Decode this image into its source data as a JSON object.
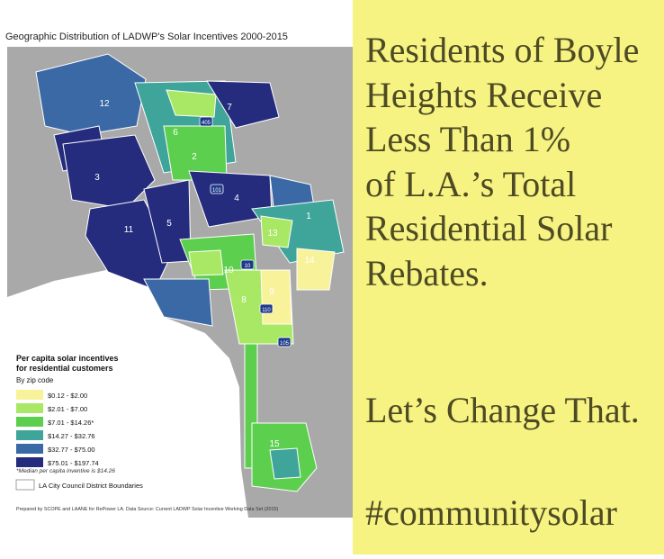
{
  "map": {
    "title": "Geographic Distribution of LADWP's Solar Incentives 2000-2015",
    "district_labels": [
      "12",
      "7",
      "6",
      "2",
      "3",
      "4",
      "5",
      "11",
      "1",
      "13",
      "10",
      "8",
      "9",
      "14",
      "15"
    ],
    "freeway_labels": [
      "405",
      "101",
      "10",
      "110",
      "105"
    ]
  },
  "legend": {
    "title_lines": [
      "Per capita solar incentives",
      "for residential customers"
    ],
    "subtitle": "By zip code",
    "items": [
      {
        "label": "$0.12 - $2.00",
        "color": "#f8f29a"
      },
      {
        "label": "$2.01 - $7.00",
        "color": "#a9e865"
      },
      {
        "label": "$7.01 - $14.26*",
        "color": "#5dcf4e"
      },
      {
        "label": "$14.27 - $32.76",
        "color": "#3fa59a"
      },
      {
        "label": "$32.77 - $75.00",
        "color": "#3b69a6"
      },
      {
        "label": "$75.01 - $197.74",
        "color": "#262c7d"
      }
    ],
    "note": "*Median per capita inventive is $14.26",
    "boundary_label": "LA City Council District Boundaries"
  },
  "source": "Prepared by SCOPE and LAANE for RePower LA. Data Source: Current LADWP Solar Incentive Working Data Set (2015)",
  "headline_lines": [
    "Residents of Boyle",
    "Heights Receive",
    "Less Than 1%",
    "of L.A.’s Total",
    "Residential Solar",
    "Rebates."
  ],
  "call_to_action": "Let’s Change That.",
  "hashtag": "#communitysolar"
}
